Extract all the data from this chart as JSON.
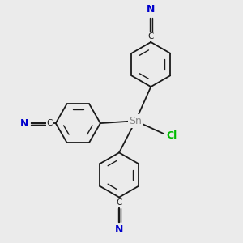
{
  "background_color": "#ebebeb",
  "bond_color": "#1a1a1a",
  "sn_color": "#888888",
  "cl_color": "#00bb00",
  "n_color": "#0000cc",
  "c_color": "#1a1a1a",
  "figsize": [
    3.0,
    3.0
  ],
  "dpi": 100,
  "sn_label": "Sn",
  "cl_label": "Cl",
  "n_label": "N",
  "c_label": "C"
}
